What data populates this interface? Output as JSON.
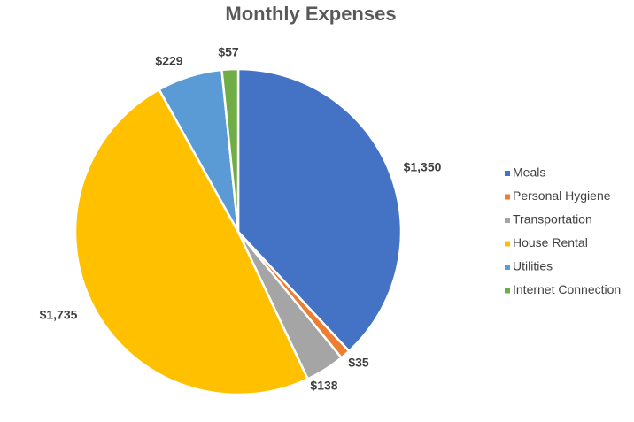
{
  "chart_data": {
    "type": "pie",
    "title": "Monthly Expenses",
    "categories": [
      "Meals",
      "Personal Hygiene",
      "Transportation",
      "House Rental",
      "Utilities",
      "Internet Connection"
    ],
    "values": [
      1350,
      35,
      138,
      1735,
      229,
      57
    ],
    "data_labels": [
      "$1,350",
      "$35",
      "$138",
      "$1,735",
      "$229",
      "$57"
    ],
    "colors": [
      "#4472C4",
      "#ED7D31",
      "#A5A5A5",
      "#FFC000",
      "#5B9BD5",
      "#70AD47"
    ],
    "legend_position": "right",
    "start_angle": "top",
    "direction": "clockwise"
  }
}
